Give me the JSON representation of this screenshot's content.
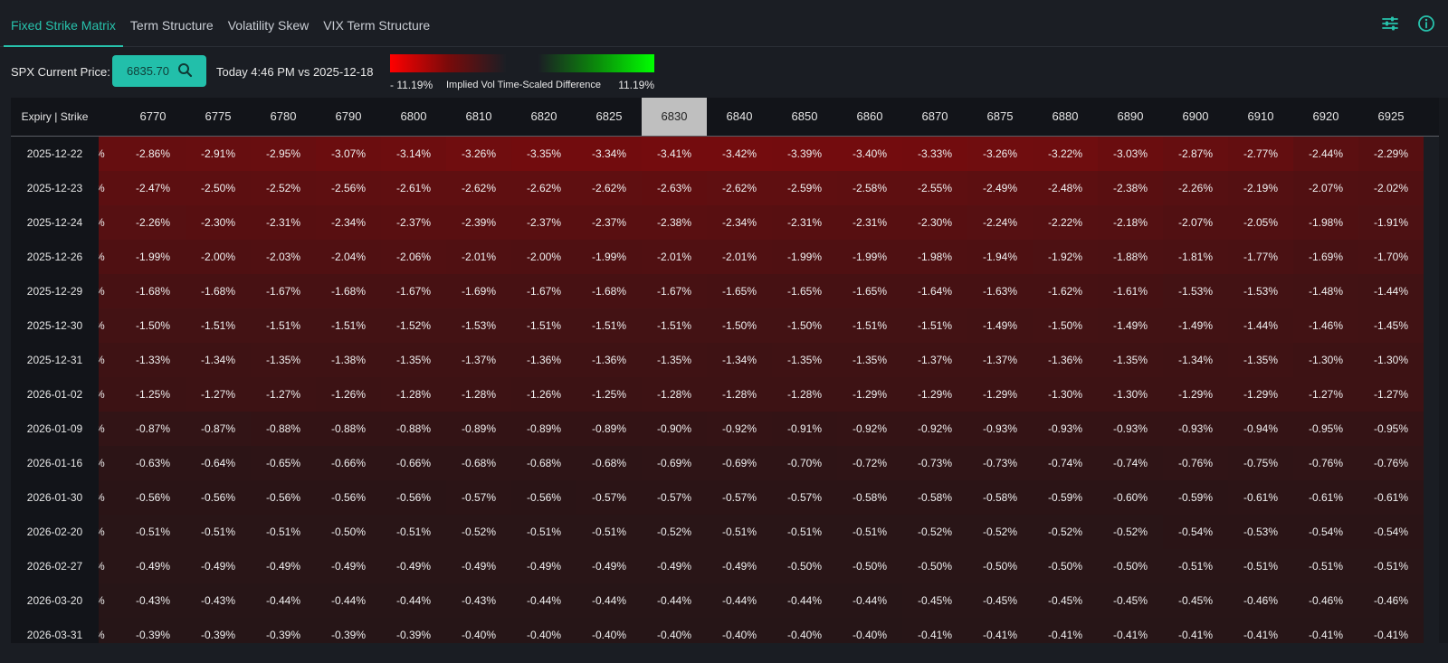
{
  "tabs": [
    {
      "label": "Fixed Strike Matrix",
      "active": true
    },
    {
      "label": "Term Structure",
      "active": false
    },
    {
      "label": "Volatility Skew",
      "active": false
    },
    {
      "label": "VIX Term Structure",
      "active": false
    }
  ],
  "top_icons": [
    "sliders-icon",
    "info-icon"
  ],
  "controls": {
    "spx_label": "SPX Current Price:",
    "price": "6835.70",
    "compare_text": "Today 4:46 PM vs 2025-12-18"
  },
  "legend": {
    "min_label": "- 11.19%",
    "mid_label": "Implied Vol Time-Scaled Difference",
    "max_label": "11.19%",
    "min_value": -11.19,
    "max_value": 11.19,
    "colors": {
      "negative": "#ff0000",
      "neutral": "#1b1e24",
      "positive": "#00ff00"
    }
  },
  "matrix": {
    "header_label": "Expiry | Strike",
    "partial_first_column": "%",
    "selected_strike": "6830",
    "strikes": [
      "6770",
      "6775",
      "6780",
      "6790",
      "6800",
      "6810",
      "6820",
      "6825",
      "6830",
      "6840",
      "6850",
      "6860",
      "6870",
      "6875",
      "6880",
      "6890",
      "6900",
      "6910",
      "6920",
      "6925"
    ],
    "rows": [
      {
        "expiry": "2025-12-22",
        "values": [
          "-2.86%",
          "-2.91%",
          "-2.95%",
          "-3.07%",
          "-3.14%",
          "-3.26%",
          "-3.35%",
          "-3.34%",
          "-3.41%",
          "-3.42%",
          "-3.39%",
          "-3.40%",
          "-3.33%",
          "-3.26%",
          "-3.22%",
          "-3.03%",
          "-2.87%",
          "-2.77%",
          "-2.44%",
          "-2.29%"
        ]
      },
      {
        "expiry": "2025-12-23",
        "values": [
          "-2.47%",
          "-2.50%",
          "-2.52%",
          "-2.56%",
          "-2.61%",
          "-2.62%",
          "-2.62%",
          "-2.62%",
          "-2.63%",
          "-2.62%",
          "-2.59%",
          "-2.58%",
          "-2.55%",
          "-2.49%",
          "-2.48%",
          "-2.38%",
          "-2.26%",
          "-2.19%",
          "-2.07%",
          "-2.02%"
        ]
      },
      {
        "expiry": "2025-12-24",
        "values": [
          "-2.26%",
          "-2.30%",
          "-2.31%",
          "-2.34%",
          "-2.37%",
          "-2.39%",
          "-2.37%",
          "-2.37%",
          "-2.38%",
          "-2.34%",
          "-2.31%",
          "-2.31%",
          "-2.30%",
          "-2.24%",
          "-2.22%",
          "-2.18%",
          "-2.07%",
          "-2.05%",
          "-1.98%",
          "-1.91%"
        ]
      },
      {
        "expiry": "2025-12-26",
        "values": [
          "-1.99%",
          "-2.00%",
          "-2.03%",
          "-2.04%",
          "-2.06%",
          "-2.01%",
          "-2.00%",
          "-1.99%",
          "-2.01%",
          "-2.01%",
          "-1.99%",
          "-1.99%",
          "-1.98%",
          "-1.94%",
          "-1.92%",
          "-1.88%",
          "-1.81%",
          "-1.77%",
          "-1.69%",
          "-1.70%"
        ]
      },
      {
        "expiry": "2025-12-29",
        "values": [
          "-1.68%",
          "-1.68%",
          "-1.67%",
          "-1.68%",
          "-1.67%",
          "-1.69%",
          "-1.67%",
          "-1.68%",
          "-1.67%",
          "-1.65%",
          "-1.65%",
          "-1.65%",
          "-1.64%",
          "-1.63%",
          "-1.62%",
          "-1.61%",
          "-1.53%",
          "-1.53%",
          "-1.48%",
          "-1.44%"
        ]
      },
      {
        "expiry": "2025-12-30",
        "values": [
          "-1.50%",
          "-1.51%",
          "-1.51%",
          "-1.51%",
          "-1.52%",
          "-1.53%",
          "-1.51%",
          "-1.51%",
          "-1.51%",
          "-1.50%",
          "-1.50%",
          "-1.51%",
          "-1.51%",
          "-1.49%",
          "-1.50%",
          "-1.49%",
          "-1.49%",
          "-1.44%",
          "-1.46%",
          "-1.45%"
        ]
      },
      {
        "expiry": "2025-12-31",
        "values": [
          "-1.33%",
          "-1.34%",
          "-1.35%",
          "-1.38%",
          "-1.35%",
          "-1.37%",
          "-1.36%",
          "-1.36%",
          "-1.35%",
          "-1.34%",
          "-1.35%",
          "-1.35%",
          "-1.37%",
          "-1.37%",
          "-1.36%",
          "-1.35%",
          "-1.34%",
          "-1.35%",
          "-1.30%",
          "-1.30%"
        ]
      },
      {
        "expiry": "2026-01-02",
        "values": [
          "-1.25%",
          "-1.27%",
          "-1.27%",
          "-1.26%",
          "-1.28%",
          "-1.28%",
          "-1.26%",
          "-1.25%",
          "-1.28%",
          "-1.28%",
          "-1.28%",
          "-1.29%",
          "-1.29%",
          "-1.29%",
          "-1.30%",
          "-1.30%",
          "-1.29%",
          "-1.29%",
          "-1.27%",
          "-1.27%"
        ]
      },
      {
        "expiry": "2026-01-09",
        "values": [
          "-0.87%",
          "-0.87%",
          "-0.88%",
          "-0.88%",
          "-0.88%",
          "-0.89%",
          "-0.89%",
          "-0.89%",
          "-0.90%",
          "-0.92%",
          "-0.91%",
          "-0.92%",
          "-0.92%",
          "-0.93%",
          "-0.93%",
          "-0.93%",
          "-0.93%",
          "-0.94%",
          "-0.95%",
          "-0.95%"
        ]
      },
      {
        "expiry": "2026-01-16",
        "values": [
          "-0.63%",
          "-0.64%",
          "-0.65%",
          "-0.66%",
          "-0.66%",
          "-0.68%",
          "-0.68%",
          "-0.68%",
          "-0.69%",
          "-0.69%",
          "-0.70%",
          "-0.72%",
          "-0.73%",
          "-0.73%",
          "-0.74%",
          "-0.74%",
          "-0.76%",
          "-0.75%",
          "-0.76%",
          "-0.76%"
        ]
      },
      {
        "expiry": "2026-01-30",
        "values": [
          "-0.56%",
          "-0.56%",
          "-0.56%",
          "-0.56%",
          "-0.56%",
          "-0.57%",
          "-0.56%",
          "-0.57%",
          "-0.57%",
          "-0.57%",
          "-0.57%",
          "-0.58%",
          "-0.58%",
          "-0.58%",
          "-0.59%",
          "-0.60%",
          "-0.59%",
          "-0.61%",
          "-0.61%",
          "-0.61%"
        ]
      },
      {
        "expiry": "2026-02-20",
        "values": [
          "-0.51%",
          "-0.51%",
          "-0.51%",
          "-0.50%",
          "-0.51%",
          "-0.52%",
          "-0.51%",
          "-0.51%",
          "-0.52%",
          "-0.51%",
          "-0.51%",
          "-0.51%",
          "-0.52%",
          "-0.52%",
          "-0.52%",
          "-0.52%",
          "-0.54%",
          "-0.53%",
          "-0.54%",
          "-0.54%"
        ]
      },
      {
        "expiry": "2026-02-27",
        "values": [
          "-0.49%",
          "-0.49%",
          "-0.49%",
          "-0.49%",
          "-0.49%",
          "-0.49%",
          "-0.49%",
          "-0.49%",
          "-0.49%",
          "-0.49%",
          "-0.50%",
          "-0.50%",
          "-0.50%",
          "-0.50%",
          "-0.50%",
          "-0.50%",
          "-0.51%",
          "-0.51%",
          "-0.51%",
          "-0.51%"
        ]
      },
      {
        "expiry": "2026-03-20",
        "values": [
          "-0.43%",
          "-0.43%",
          "-0.44%",
          "-0.44%",
          "-0.44%",
          "-0.43%",
          "-0.44%",
          "-0.44%",
          "-0.44%",
          "-0.44%",
          "-0.44%",
          "-0.44%",
          "-0.45%",
          "-0.45%",
          "-0.45%",
          "-0.45%",
          "-0.45%",
          "-0.46%",
          "-0.46%",
          "-0.46%"
        ]
      },
      {
        "expiry": "2026-03-31",
        "values": [
          "-0.39%",
          "-0.39%",
          "-0.39%",
          "-0.39%",
          "-0.39%",
          "-0.40%",
          "-0.40%",
          "-0.40%",
          "-0.40%",
          "-0.40%",
          "-0.40%",
          "-0.40%",
          "-0.41%",
          "-0.41%",
          "-0.41%",
          "-0.41%",
          "-0.41%",
          "-0.41%",
          "-0.41%",
          "-0.41%"
        ]
      }
    ]
  }
}
